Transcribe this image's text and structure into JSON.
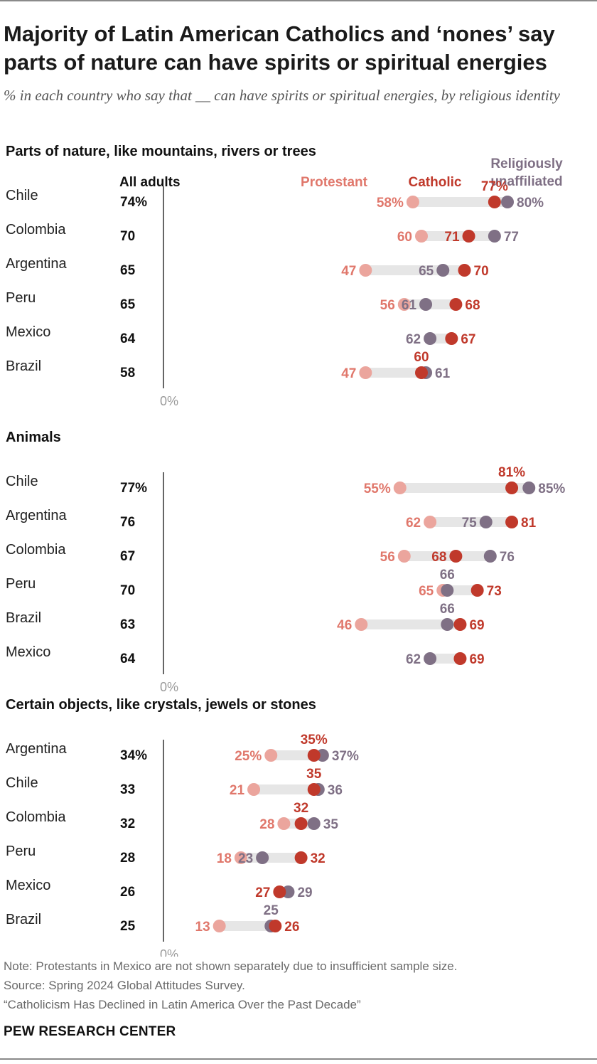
{
  "title": "Majority of Latin American Catholics and ‘nones’ say parts of nature can have spirits or spiritual energies",
  "subtitle": "% in each country who say that __ can have spirits or spiritual energies, by religious identity",
  "legend": {
    "all_adults": "All adults",
    "protestant": "Protestant",
    "catholic": "Catholic",
    "unaffiliated_line1": "Religiously",
    "unaffiliated_line2": "unaffiliated"
  },
  "colors": {
    "protestant": "#eba59d",
    "protestant_text": "#e0776b",
    "catholic": "#c0392b",
    "unaffiliated": "#7f7085",
    "bar": "#e6e6e6",
    "axis": "#333333",
    "zero_label": "#9a9a9a"
  },
  "chart_data": [
    {
      "type": "dot",
      "title": "Parts of nature, like mountains, rivers or trees",
      "zero_label": "0%",
      "xlim": [
        0,
        100
      ],
      "rows": [
        {
          "country": "Chile",
          "all": "74%",
          "protestant": 58,
          "catholic": 77,
          "unaffiliated": 80,
          "pct": true
        },
        {
          "country": "Colombia",
          "all": "70",
          "protestant": 60,
          "catholic": 71,
          "unaffiliated": 77
        },
        {
          "country": "Argentina",
          "all": "65",
          "protestant": 47,
          "catholic": 70,
          "unaffiliated": 65
        },
        {
          "country": "Peru",
          "all": "65",
          "protestant": 56,
          "catholic": 68,
          "unaffiliated": 61
        },
        {
          "country": "Mexico",
          "all": "64",
          "protestant": null,
          "catholic": 67,
          "unaffiliated": 62
        },
        {
          "country": "Brazil",
          "all": "58",
          "protestant": 47,
          "catholic": 60,
          "unaffiliated": 61
        }
      ]
    },
    {
      "type": "dot",
      "title": "Animals",
      "zero_label": "0%",
      "xlim": [
        0,
        100
      ],
      "rows": [
        {
          "country": "Chile",
          "all": "77%",
          "protestant": 55,
          "catholic": 81,
          "unaffiliated": 85,
          "pct": true
        },
        {
          "country": "Argentina",
          "all": "76",
          "protestant": 62,
          "catholic": 81,
          "unaffiliated": 75
        },
        {
          "country": "Colombia",
          "all": "67",
          "protestant": 56,
          "catholic": 68,
          "unaffiliated": 76
        },
        {
          "country": "Peru",
          "all": "70",
          "protestant": 65,
          "catholic": 73,
          "unaffiliated": 66
        },
        {
          "country": "Brazil",
          "all": "63",
          "protestant": 46,
          "catholic": 69,
          "unaffiliated": 66
        },
        {
          "country": "Mexico",
          "all": "64",
          "protestant": null,
          "catholic": 69,
          "unaffiliated": 62
        }
      ]
    },
    {
      "type": "dot",
      "title": "Certain objects, like crystals, jewels or stones",
      "zero_label": "0%",
      "xlim": [
        0,
        100
      ],
      "rows": [
        {
          "country": "Argentina",
          "all": "34%",
          "protestant": 25,
          "catholic": 35,
          "unaffiliated": 37,
          "pct": true
        },
        {
          "country": "Chile",
          "all": "33",
          "protestant": 21,
          "catholic": 35,
          "unaffiliated": 36
        },
        {
          "country": "Colombia",
          "all": "32",
          "protestant": 28,
          "catholic": 32,
          "unaffiliated": 35
        },
        {
          "country": "Peru",
          "all": "28",
          "protestant": 18,
          "catholic": 32,
          "unaffiliated": 23
        },
        {
          "country": "Mexico",
          "all": "26",
          "protestant": null,
          "catholic": 27,
          "unaffiliated": 29
        },
        {
          "country": "Brazil",
          "all": "25",
          "protestant": 13,
          "catholic": 26,
          "unaffiliated": 25
        }
      ]
    }
  ],
  "footer": {
    "note": "Note: Protestants in Mexico are not shown separately due to insufficient sample size.",
    "source": "Source: Spring 2024 Global Attitudes Survey.",
    "report": "“Catholicism Has Declined in Latin America Over the Past Decade”",
    "brand": "PEW RESEARCH CENTER"
  }
}
